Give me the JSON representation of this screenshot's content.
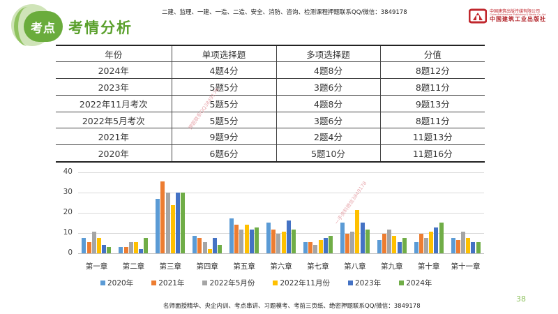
{
  "header": {
    "badge_label": "考点",
    "section_title": "考情分析",
    "top_note": "二建、监理、一建、一造、二造、安全、消防、咨询、检测课程押题联系QQ/微信：3849178",
    "logo": {
      "line1": "中国建筑出版传媒有限公司",
      "line2": "China Architecture Publishing & Media Co.,Ltd",
      "line3": "中国建筑工业出版社",
      "color": "#c0272d"
    }
  },
  "table": {
    "headers": [
      "年份",
      "单项选择题",
      "多项选择题",
      "分值"
    ],
    "rows": [
      [
        "2024年",
        "4题4分",
        "4题8分",
        "8题12分"
      ],
      [
        "2023年",
        "5题5分",
        "3题6分",
        "8题11分"
      ],
      [
        "2022年11月考次",
        "5题5分",
        "4题8分",
        "9题13分"
      ],
      [
        "2022年5月考次",
        "5题5分",
        "3题6分",
        "8题11分"
      ],
      [
        "2021年",
        "9题9分",
        "2题4分",
        "11题13分"
      ],
      [
        "2020年",
        "6题6分",
        "5题10分",
        "11题16分"
      ]
    ]
  },
  "watermarks": [
    "押题联系QQ3849178",
    "一手资料微信3849178"
  ],
  "chart_data": {
    "type": "bar",
    "title": "",
    "xlabel": "",
    "ylabel": "",
    "ylim": [
      0,
      40
    ],
    "yticks": [
      0,
      10,
      20,
      30,
      40
    ],
    "grid": true,
    "legend_position": "bottom",
    "categories": [
      "第一章",
      "第二章",
      "第三章",
      "第四章",
      "第五章",
      "第六章",
      "第七章",
      "第八章",
      "第九章",
      "第十章",
      "第十一章"
    ],
    "series": [
      {
        "name": "2020年",
        "color": "#5b9bd5",
        "values": [
          7,
          3,
          25,
          8,
          16,
          14,
          5,
          14,
          6,
          5,
          7
        ]
      },
      {
        "name": "2021年",
        "color": "#ed7d31",
        "values": [
          5,
          3,
          33,
          7,
          13,
          11,
          5,
          9,
          9,
          9,
          6
        ]
      },
      {
        "name": "2022年5月份",
        "color": "#a5a5a5",
        "values": [
          10,
          5,
          28,
          5,
          11,
          9,
          4,
          10,
          11,
          7,
          10
        ]
      },
      {
        "name": "2022年11月份",
        "color": "#ffc000",
        "values": [
          7,
          5,
          22,
          2,
          13,
          10,
          6,
          20,
          8,
          10,
          7
        ]
      },
      {
        "name": "2023年",
        "color": "#4472c4",
        "values": [
          4,
          2,
          28,
          7,
          11,
          15,
          7,
          14,
          5,
          12,
          5
        ]
      },
      {
        "name": "2024年",
        "color": "#70ad47",
        "values": [
          3,
          7,
          28,
          4,
          12,
          11,
          8,
          11,
          7,
          14,
          5
        ]
      }
    ]
  },
  "footer": {
    "note": "名师面授精华、央企内训、考点串讲、习题模考、考前三页纸、绝密押题联系QQ/微信：3849178",
    "page_number": "38"
  }
}
